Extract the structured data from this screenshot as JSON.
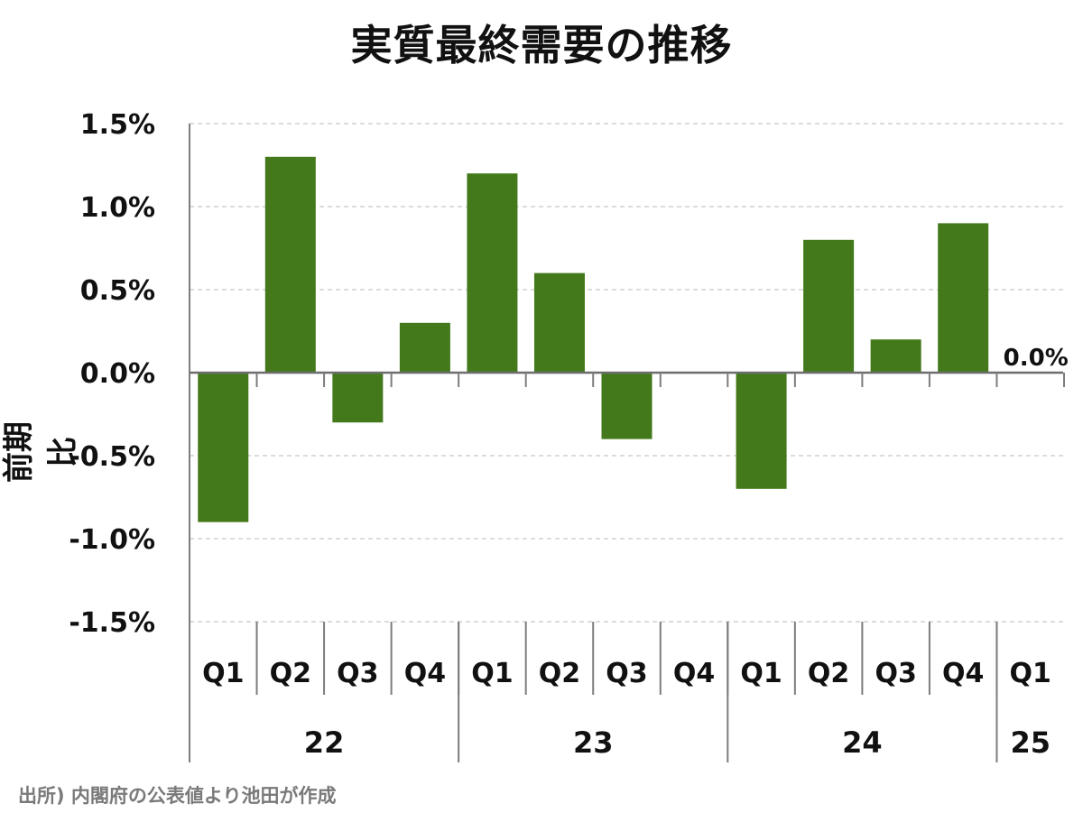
{
  "chart_data": {
    "type": "bar",
    "title": "実質最終需要の推移",
    "ylabel": "前期比",
    "xlabel": "",
    "ylim": [
      -1.5,
      1.5
    ],
    "yticks": [
      "1.5%",
      "1.0%",
      "0.5%",
      "0.0%",
      "-0.5%",
      "-1.0%",
      "-1.5%"
    ],
    "ytick_values": [
      1.5,
      1.0,
      0.5,
      0.0,
      -0.5,
      -1.0,
      -1.5
    ],
    "grid": "horizontal dashed",
    "categories": [
      "Q1",
      "Q2",
      "Q3",
      "Q4",
      "Q1",
      "Q2",
      "Q3",
      "Q4",
      "Q1",
      "Q2",
      "Q3",
      "Q4",
      "Q1"
    ],
    "groups": [
      {
        "label": "22",
        "count": 4
      },
      {
        "label": "23",
        "count": 4
      },
      {
        "label": "24",
        "count": 4
      },
      {
        "label": "25",
        "count": 1
      }
    ],
    "values": [
      -0.9,
      1.3,
      -0.3,
      0.3,
      1.2,
      0.6,
      -0.4,
      0.0,
      -0.7,
      0.8,
      0.2,
      0.9,
      0.0
    ],
    "annotations": [
      {
        "index": 12,
        "text": "0.0%"
      }
    ],
    "bar_color": "#43791a"
  },
  "source_note": "出所) 内閣府の公表値より池田が作成"
}
